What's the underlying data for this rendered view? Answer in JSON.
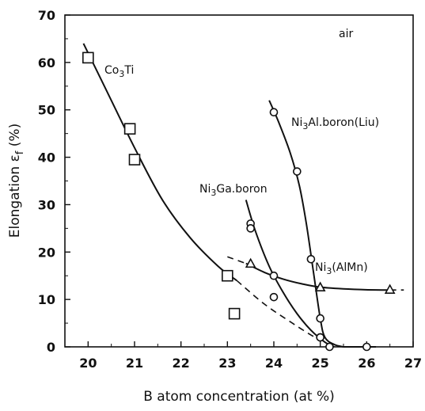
{
  "chart_data": {
    "type": "scatter",
    "xlabel": "B atom concentration (at %)",
    "ylabel": "Elongation ε f (%)",
    "xlim": [
      19.5,
      27
    ],
    "ylim": [
      0,
      70
    ],
    "xticks": [
      "20",
      "21",
      "22",
      "23",
      "24",
      "25",
      "26",
      "27"
    ],
    "yticks": [
      "0",
      "10",
      "20",
      "30",
      "40",
      "50",
      "60",
      "70"
    ],
    "annotation": "air",
    "series": [
      {
        "name": "Co3Ti",
        "marker": "square",
        "points": [
          [
            20.0,
            61
          ],
          [
            20.9,
            46
          ],
          [
            21.0,
            39.5
          ],
          [
            23.0,
            15
          ],
          [
            23.15,
            7
          ]
        ],
        "curve": [
          [
            19.9,
            64
          ],
          [
            20.4,
            54
          ],
          [
            21.0,
            42
          ],
          [
            21.6,
            31
          ],
          [
            22.2,
            23
          ],
          [
            22.8,
            17
          ],
          [
            23.2,
            14
          ]
        ],
        "dashed_curve": [
          [
            23.2,
            14
          ],
          [
            23.8,
            9
          ],
          [
            24.4,
            5
          ],
          [
            24.8,
            2.5
          ],
          [
            25.0,
            1.5
          ]
        ]
      },
      {
        "name": "Ni3Ga.boron",
        "marker": "circle",
        "points": [
          [
            23.5,
            26
          ],
          [
            23.5,
            25
          ],
          [
            24.0,
            15
          ],
          [
            24.0,
            10.5
          ],
          [
            25.0,
            2
          ],
          [
            25.2,
            0
          ]
        ],
        "curve": [
          [
            23.4,
            31
          ],
          [
            23.6,
            24.5
          ],
          [
            23.9,
            17
          ],
          [
            24.2,
            11.5
          ],
          [
            24.5,
            7
          ],
          [
            24.8,
            3.5
          ],
          [
            25.1,
            1
          ],
          [
            25.3,
            0
          ]
        ]
      },
      {
        "name": "Ni3Al.boron(Liu)",
        "marker": "circle",
        "points": [
          [
            24.0,
            49.5
          ],
          [
            24.5,
            37
          ],
          [
            24.8,
            18.5
          ],
          [
            25.0,
            6
          ],
          [
            25.0,
            2
          ],
          [
            26.0,
            0
          ]
        ],
        "curve": [
          [
            23.9,
            52
          ],
          [
            24.1,
            47.5
          ],
          [
            24.35,
            41
          ],
          [
            24.55,
            34
          ],
          [
            24.7,
            26
          ],
          [
            24.85,
            16
          ],
          [
            25.0,
            6
          ],
          [
            25.1,
            2
          ],
          [
            25.3,
            0.5
          ],
          [
            25.5,
            0
          ]
        ],
        "flat_curve": [
          [
            25.5,
            0
          ],
          [
            26.0,
            0
          ],
          [
            26.2,
            0
          ]
        ]
      },
      {
        "name": "Ni3(AlMn)",
        "marker": "triangle",
        "points": [
          [
            23.5,
            17.5
          ],
          [
            25.0,
            12.5
          ],
          [
            26.5,
            12
          ]
        ],
        "dashed_curve": [
          [
            23.0,
            19
          ],
          [
            23.4,
            17.6
          ]
        ],
        "curve": [
          [
            23.4,
            17.6
          ],
          [
            23.8,
            15.7
          ],
          [
            24.2,
            14.3
          ],
          [
            24.6,
            13.3
          ],
          [
            25.0,
            12.6
          ],
          [
            25.6,
            12.2
          ],
          [
            26.2,
            12.0
          ],
          [
            26.5,
            12.0
          ]
        ],
        "tail_dash": [
          [
            26.5,
            12.0
          ],
          [
            26.8,
            12.0
          ]
        ]
      }
    ]
  },
  "labels": {
    "co3ti": "Co3Ti",
    "ni3al": "Ni3Al.boron(Liu)",
    "ni3ga": "Ni3Ga.boron",
    "ni3almn": "Ni3(AlMn)",
    "air": "air"
  }
}
